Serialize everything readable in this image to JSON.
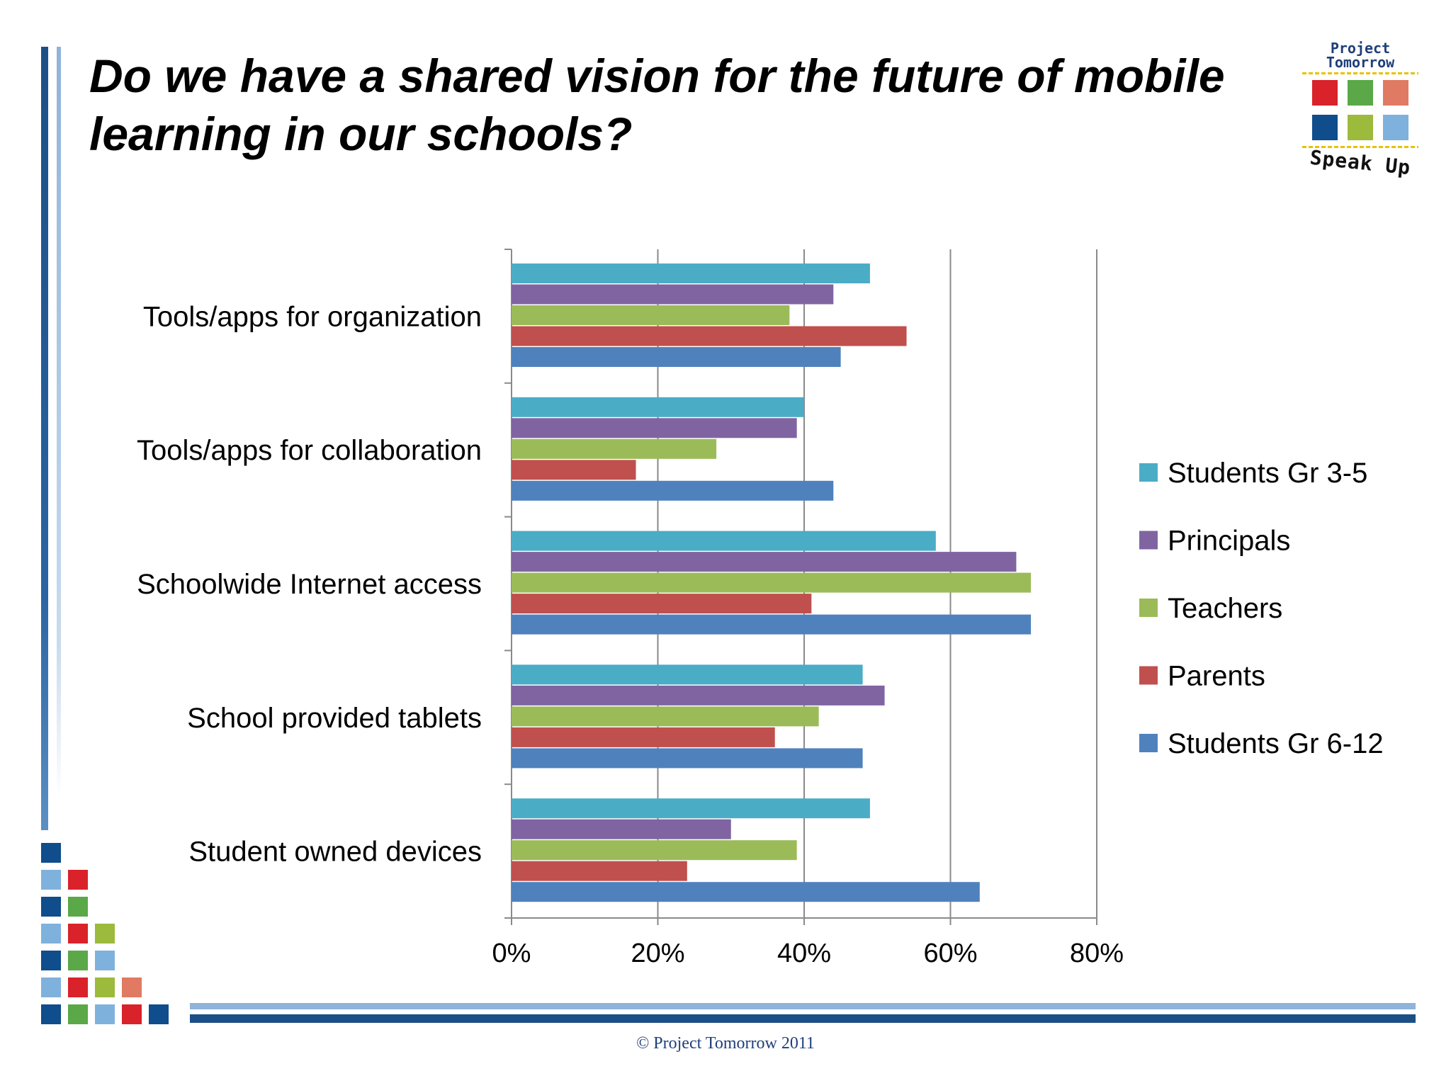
{
  "slide": {
    "title": "Do we have a shared vision for the future of mobile learning in our schools?",
    "footer": "© Project Tomorrow 2011"
  },
  "logo": {
    "line1": "Project",
    "line2": "Tomorrow",
    "tagline": "Speak Up",
    "tile_colors": [
      "#d9222a",
      "#5aa847",
      "#e07a62",
      "#0f4d8c",
      "#9cba3c",
      "#7fb1dd"
    ]
  },
  "colors": {
    "mosaic": [
      "#0f4d8c",
      "#7fb1dd",
      "#d9222a",
      "#5aa847",
      "#9cba3c",
      "#e07a62"
    ]
  },
  "chart_data": {
    "type": "bar",
    "orientation": "horizontal",
    "categories": [
      "Tools/apps for organization",
      "Tools/apps for collaboration",
      "Schoolwide Internet access",
      "School provided tablets",
      "Student owned devices"
    ],
    "series": [
      {
        "name": "Students Gr 3-5",
        "color": "#4bacc6",
        "values": [
          49,
          40,
          58,
          48,
          49
        ]
      },
      {
        "name": "Principals",
        "color": "#8064a2",
        "values": [
          44,
          39,
          69,
          51,
          30
        ]
      },
      {
        "name": "Teachers",
        "color": "#9bbb59",
        "values": [
          38,
          28,
          71,
          42,
          39
        ]
      },
      {
        "name": "Parents",
        "color": "#c0504d",
        "values": [
          54,
          17,
          41,
          36,
          24
        ]
      },
      {
        "name": "Students Gr 6-12",
        "color": "#4f81bd",
        "values": [
          45,
          44,
          71,
          48,
          64
        ]
      }
    ],
    "xlim": [
      0,
      80
    ],
    "xticks": [
      0,
      20,
      40,
      60,
      80
    ],
    "xtick_labels": [
      "0%",
      "20%",
      "40%",
      "60%",
      "80%"
    ],
    "grid": true,
    "legend": "right"
  }
}
